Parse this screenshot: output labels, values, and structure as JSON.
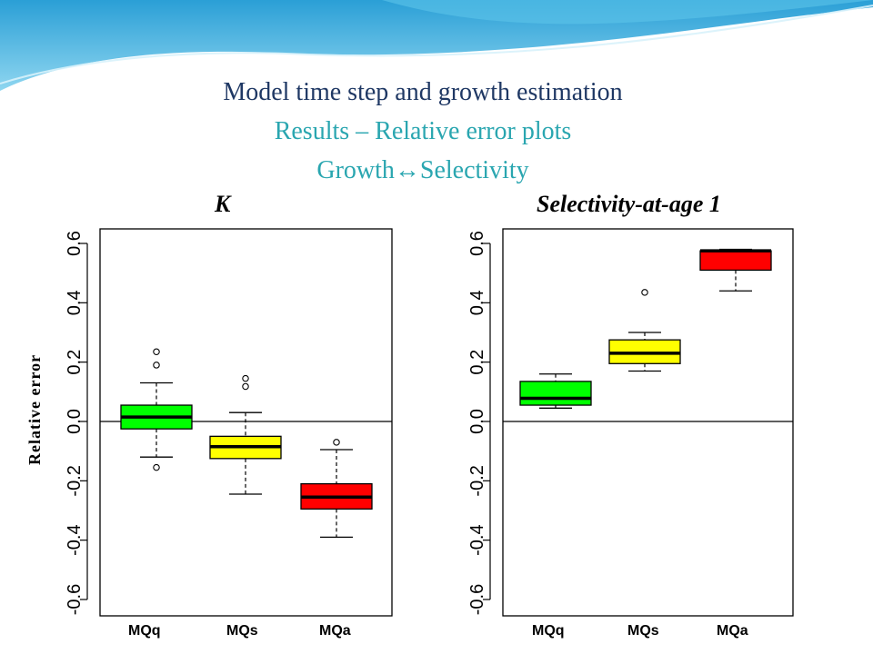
{
  "slide": {
    "title_main": "Model time step and growth estimation",
    "title_sub": "Results – Relative error plots",
    "title_sub2": "Growth↔Selectivity",
    "y_axis_label": "Relative error",
    "colors": {
      "title_dark": "#1f3864",
      "title_teal": "#2aa6b0",
      "green": "#00ff00",
      "yellow": "#ffff00",
      "red": "#ff0000"
    }
  },
  "chart_data": [
    {
      "type": "boxplot",
      "title": "K",
      "ylim": [
        -0.7,
        0.65
      ],
      "yticks": [
        -0.6,
        -0.4,
        -0.2,
        0.0,
        0.2,
        0.4,
        0.6
      ],
      "ytick_labels": [
        "-0.6",
        "-0.4",
        "-0.2",
        "0.0",
        "0.2",
        "0.4",
        "0.6"
      ],
      "hline": 0,
      "categories": [
        "MQq",
        "MQs",
        "MQa"
      ],
      "boxes": [
        {
          "category": "MQq",
          "color": "#00ff00",
          "whisker_low": -0.12,
          "q1": -0.025,
          "median": 0.015,
          "q3": 0.055,
          "whisker_high": 0.13,
          "outliers": [
            0.235,
            0.19,
            -0.155
          ]
        },
        {
          "category": "MQs",
          "color": "#ffff00",
          "whisker_low": -0.245,
          "q1": -0.125,
          "median": -0.085,
          "q3": -0.05,
          "whisker_high": 0.03,
          "outliers": [
            0.145,
            0.118
          ]
        },
        {
          "category": "MQa",
          "color": "#ff0000",
          "whisker_low": -0.39,
          "q1": -0.295,
          "median": -0.255,
          "q3": -0.21,
          "whisker_high": -0.095,
          "outliers": [
            -0.07
          ]
        }
      ]
    },
    {
      "type": "boxplot",
      "title": "Selectivity-at-age 1",
      "ylim": [
        -0.7,
        0.65
      ],
      "yticks": [
        -0.6,
        -0.4,
        -0.2,
        0.0,
        0.2,
        0.4,
        0.6
      ],
      "ytick_labels": [
        "-0.6",
        "-0.4",
        "-0.2",
        "0.0",
        "0.2",
        "0.4",
        "0.6"
      ],
      "hline": 0,
      "categories": [
        "MQq",
        "MQs",
        "MQa"
      ],
      "boxes": [
        {
          "category": "MQq",
          "color": "#00ff00",
          "whisker_low": 0.045,
          "q1": 0.055,
          "median": 0.078,
          "q3": 0.135,
          "whisker_high": 0.16,
          "outliers": []
        },
        {
          "category": "MQs",
          "color": "#ffff00",
          "whisker_low": 0.17,
          "q1": 0.195,
          "median": 0.23,
          "q3": 0.275,
          "whisker_high": 0.3,
          "outliers": [
            0.435
          ]
        },
        {
          "category": "MQa",
          "color": "#ff0000",
          "whisker_low": 0.44,
          "q1": 0.51,
          "median": 0.575,
          "q3": 0.575,
          "whisker_high": 0.58,
          "outliers": []
        }
      ]
    }
  ]
}
